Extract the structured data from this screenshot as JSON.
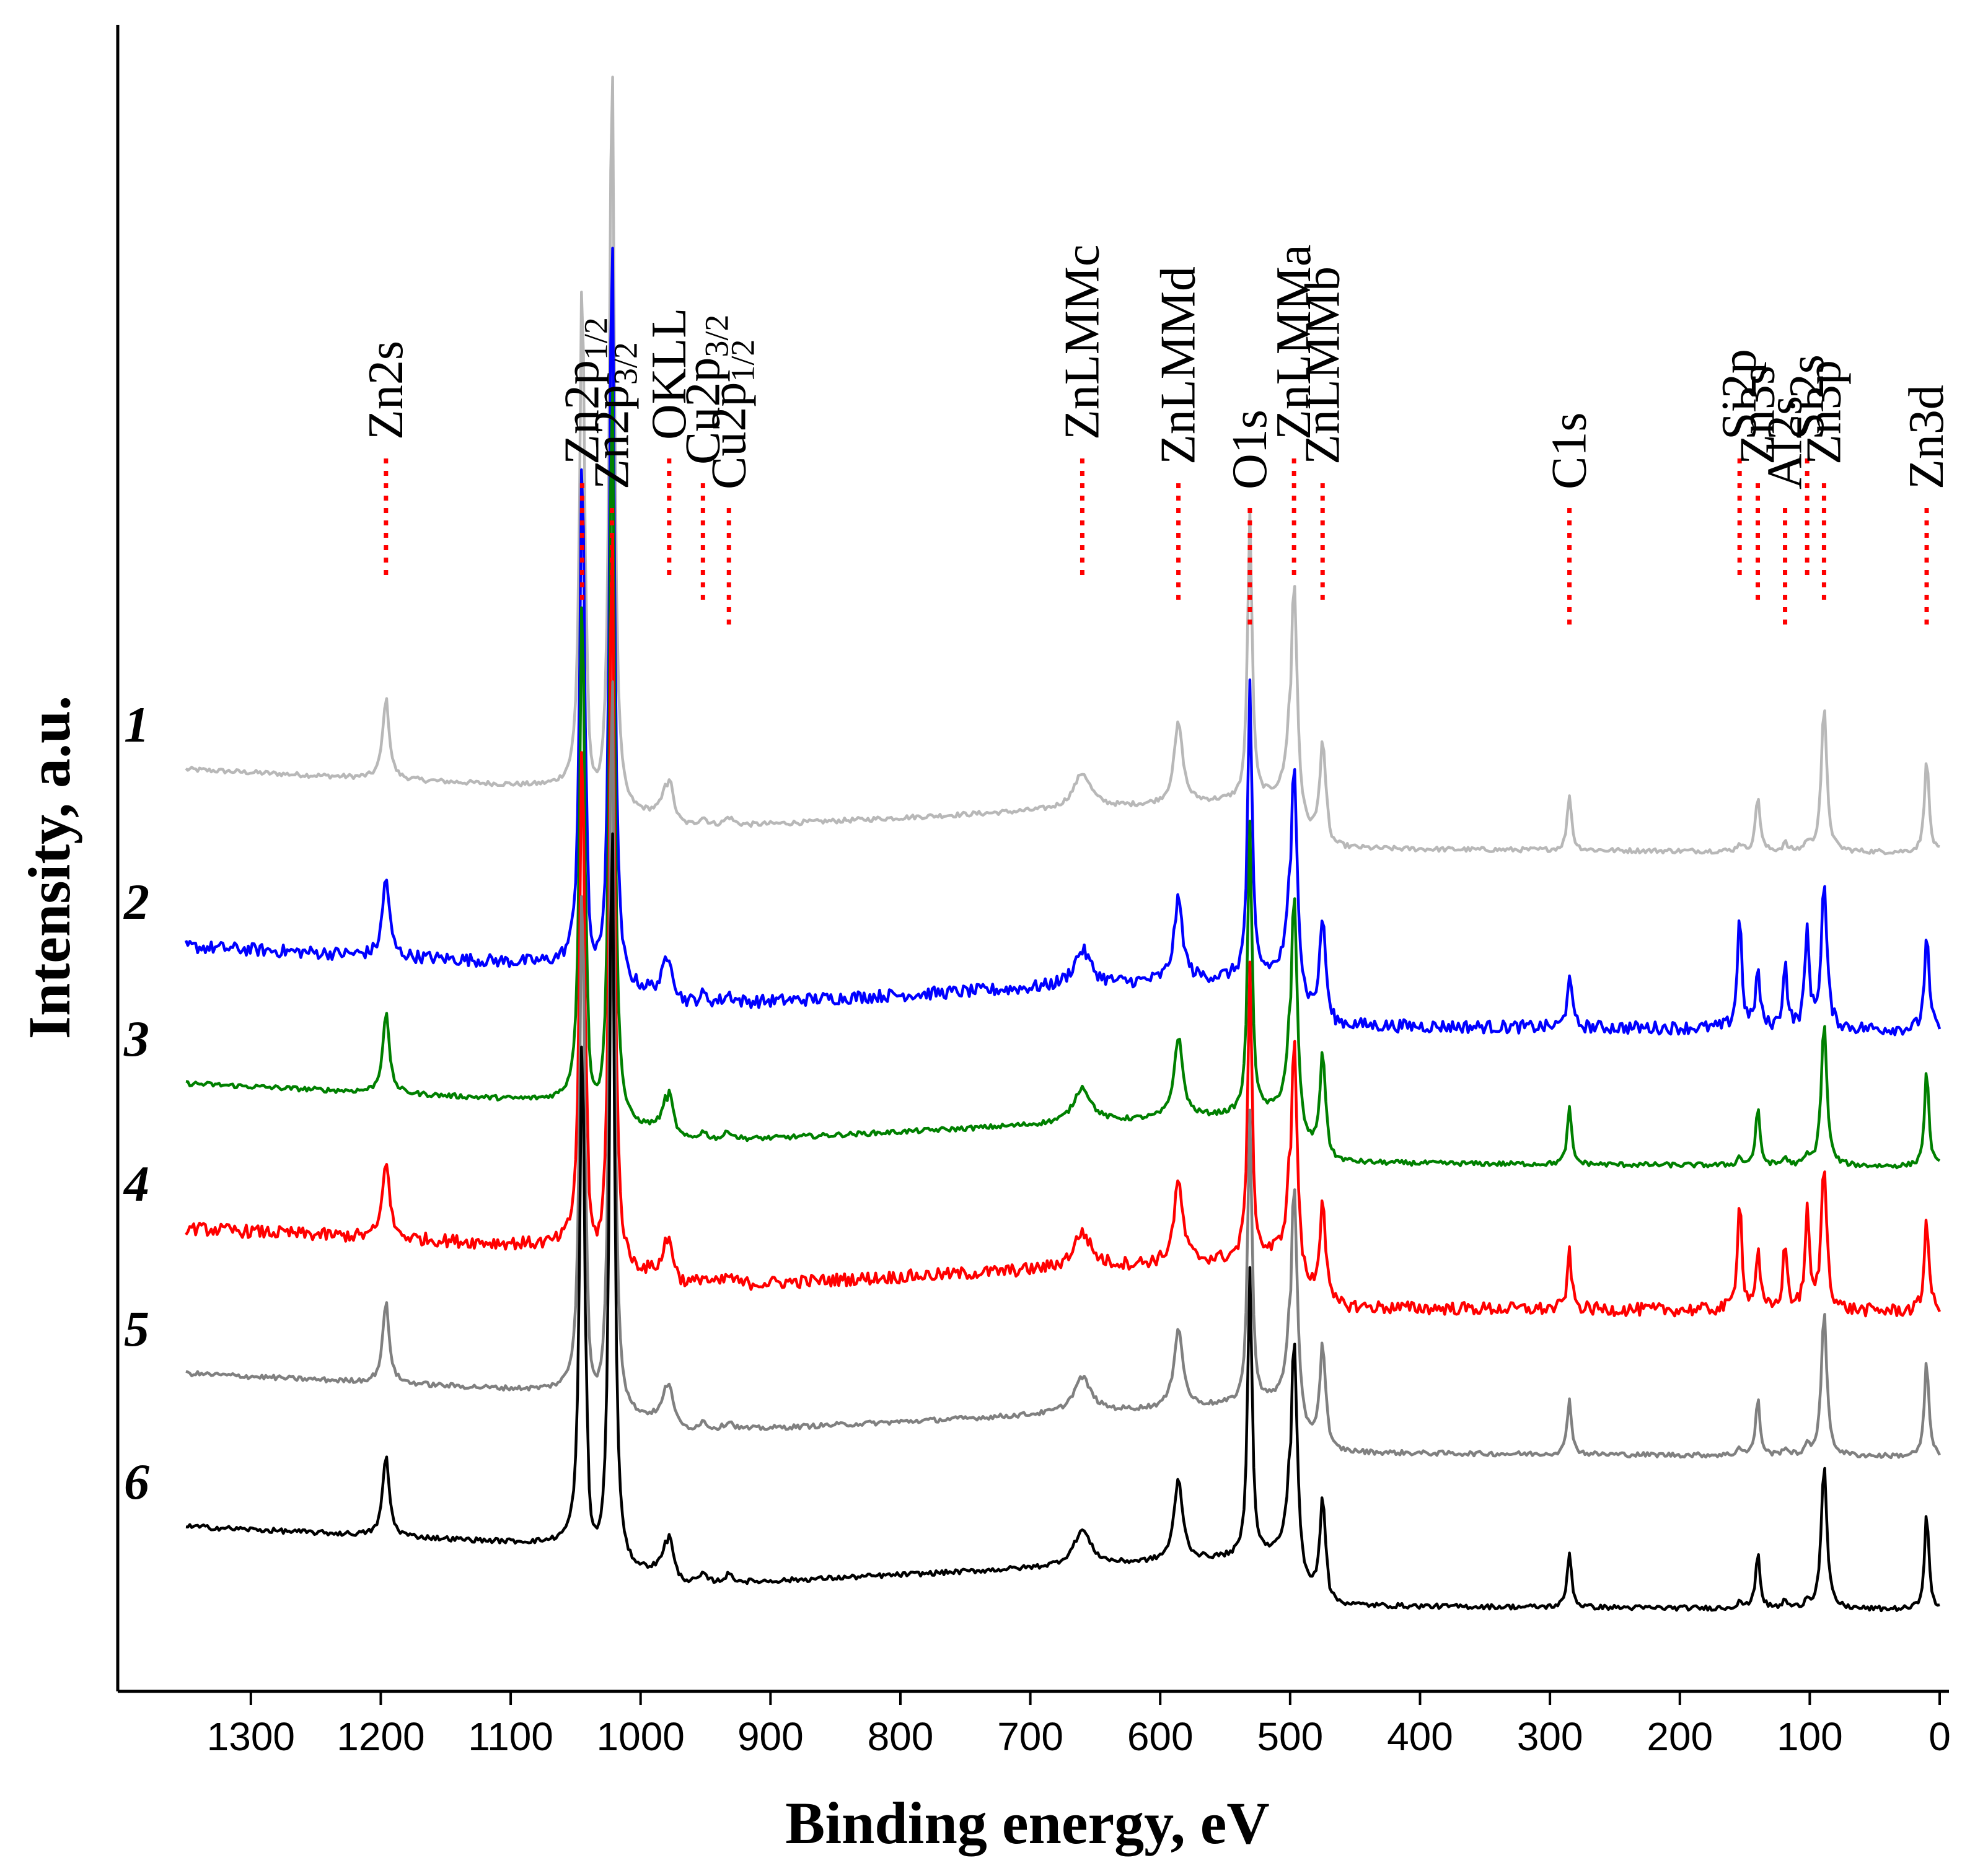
{
  "chart_data": {
    "type": "line",
    "title": "",
    "xlabel": "Binding energy, eV",
    "ylabel": "Intensity, a.u.",
    "xlim": [
      1360,
      -5
    ],
    "x_reversed": true,
    "x_ticks": [
      1300,
      1200,
      1100,
      1000,
      900,
      800,
      700,
      600,
      500,
      400,
      300,
      200,
      100,
      0
    ],
    "y_ticks": [],
    "grid": false,
    "series": [
      {
        "name": "1",
        "color": "#b8b8b8",
        "offset": 5.35
      },
      {
        "name": "2",
        "color": "#0000ff",
        "offset": 4.25
      },
      {
        "name": "3",
        "color": "#008000",
        "offset": 3.4
      },
      {
        "name": "4",
        "color": "#ff0000",
        "offset": 2.5
      },
      {
        "name": "5",
        "color": "#808080",
        "offset": 1.6
      },
      {
        "name": "6",
        "color": "#000000",
        "offset": 0.65
      }
    ],
    "peaks": [
      {
        "label": "Zn2s",
        "sub": "",
        "be": 1196,
        "height": 0.5,
        "width": 3
      },
      {
        "label": "Zn2p",
        "sub": "1/2",
        "be": 1045,
        "height": 3.2,
        "width": 2.2
      },
      {
        "label": "Zn2p",
        "sub": "3/2",
        "be": 1022,
        "height": 4.8,
        "width": 2.2
      },
      {
        "label": "OKLL",
        "sub": "",
        "be": 978,
        "height": 0.3,
        "width": 4
      },
      {
        "label": "Cu2p",
        "sub": "3/2",
        "be": 952,
        "height": 0.05,
        "width": 4
      },
      {
        "label": "Cu2p",
        "sub": "1/2",
        "be": 932,
        "height": 0.05,
        "width": 4
      },
      {
        "label": "ZnLMMc",
        "sub": "",
        "be": 660,
        "height": 0.22,
        "width": 8
      },
      {
        "label": "ZnLMMd",
        "sub": "",
        "be": 586,
        "height": 0.5,
        "width": 4
      },
      {
        "label": "O1s",
        "sub": "",
        "be": 531,
        "height": 1.8,
        "width": 2
      },
      {
        "label": "ZnLMMa",
        "sub": "",
        "be": 497,
        "height": 1.6,
        "width": 3
      },
      {
        "label": "ZnLMMb",
        "sub": "",
        "be": 475,
        "height": 0.6,
        "width": 2.5
      },
      {
        "label": "C1s",
        "sub": "",
        "be": 285,
        "height": 0.35,
        "width": 2
      },
      {
        "label": "Si2p",
        "sub": "",
        "be": 154,
        "height": 0.7,
        "width": 2
      },
      {
        "label": "Zn3s",
        "sub": "",
        "be": 140,
        "height": 0.35,
        "width": 2
      },
      {
        "label": "Al2s",
        "sub": "",
        "be": 119,
        "height": 0.4,
        "width": 2
      },
      {
        "label": "Si2s",
        "sub": "",
        "be": 102,
        "height": 0.6,
        "width": 2
      },
      {
        "label": "Zn3p",
        "sub": "",
        "be": 89,
        "height": 0.9,
        "width": 2.5
      },
      {
        "label": "Zn3d",
        "sub": "",
        "be": 10,
        "height": 0.6,
        "width": 2
      }
    ]
  }
}
